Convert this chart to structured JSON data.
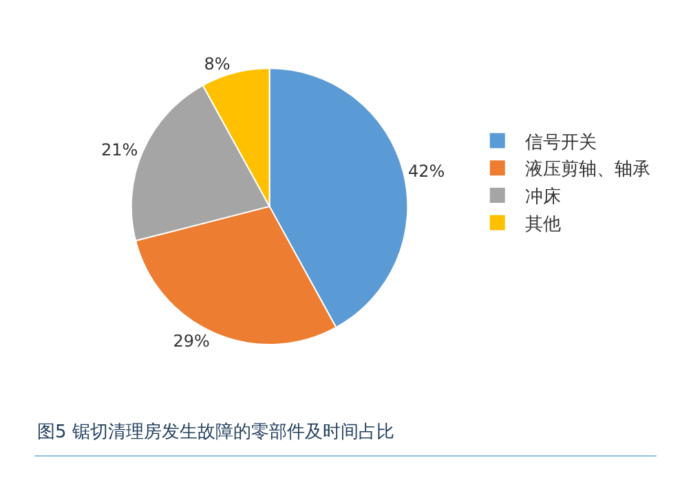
{
  "chart_data": {
    "type": "pie",
    "title": "图5 锯切清理房发生故障的零部件及时间占比",
    "categories": [
      "信号开关",
      "液压剪轴、轴承",
      "冲床",
      "其他"
    ],
    "values": [
      42,
      29,
      21,
      8
    ],
    "colors": [
      "#5b9bd5",
      "#ed7d31",
      "#a5a5a5",
      "#ffc000"
    ],
    "value_labels": [
      "42%",
      "29%",
      "21%",
      "8%"
    ],
    "legend": "right"
  }
}
